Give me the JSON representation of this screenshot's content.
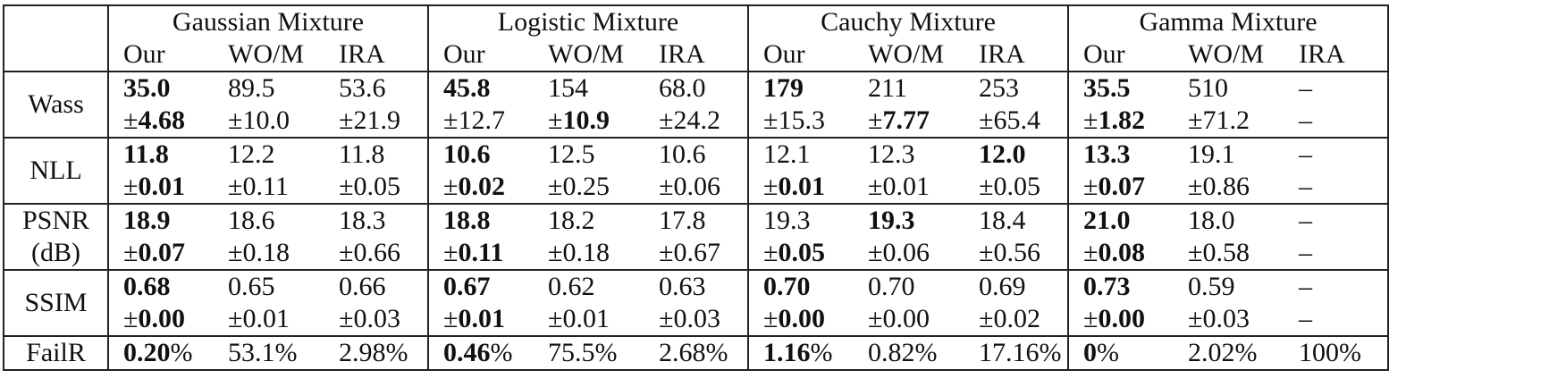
{
  "groups": [
    "Gaussian Mixture",
    "Logistic Mixture",
    "Cauchy Mixture",
    "Gamma Mixture"
  ],
  "methods": [
    "Our",
    "WO/M",
    "IRA"
  ],
  "rows": [
    {
      "label": [
        "Wass"
      ],
      "cells": [
        [
          [
            "35.0",
            "b"
          ],
          [
            "±",
            "",
            "4.68",
            "b"
          ]
        ],
        [
          [
            "89.5",
            ""
          ],
          [
            "±",
            "",
            "10.0",
            ""
          ]
        ],
        [
          [
            "53.6",
            ""
          ],
          [
            "±",
            "",
            "21.9",
            ""
          ]
        ],
        [
          [
            "45.8",
            "b"
          ],
          [
            "±",
            "",
            "12.7",
            ""
          ]
        ],
        [
          [
            "154",
            ""
          ],
          [
            "±",
            "",
            "10.9",
            "b"
          ]
        ],
        [
          [
            "68.0",
            ""
          ],
          [
            "±",
            "",
            "24.2",
            ""
          ]
        ],
        [
          [
            "179",
            "b"
          ],
          [
            "±",
            "",
            "15.3",
            ""
          ]
        ],
        [
          [
            "211",
            ""
          ],
          [
            "±",
            "",
            "7.77",
            "b"
          ]
        ],
        [
          [
            "253",
            ""
          ],
          [
            "±",
            "",
            "65.4",
            ""
          ]
        ],
        [
          [
            "35.5",
            "b"
          ],
          [
            "±",
            "",
            "1.82",
            "b"
          ]
        ],
        [
          [
            "510",
            ""
          ],
          [
            "±",
            "",
            "71.2",
            ""
          ]
        ],
        [
          [
            "–",
            ""
          ],
          [
            "–",
            ""
          ]
        ]
      ]
    },
    {
      "label": [
        "NLL"
      ],
      "cells": [
        [
          [
            "11.8",
            "b"
          ],
          [
            "±",
            "",
            "0.01",
            "b"
          ]
        ],
        [
          [
            "12.2",
            ""
          ],
          [
            "±",
            "",
            "0.11",
            ""
          ]
        ],
        [
          [
            "11.8",
            ""
          ],
          [
            "±",
            "",
            "0.05",
            ""
          ]
        ],
        [
          [
            "10.6",
            "b"
          ],
          [
            "±",
            "",
            "0.02",
            "b"
          ]
        ],
        [
          [
            "12.5",
            ""
          ],
          [
            "±",
            "",
            "0.25",
            ""
          ]
        ],
        [
          [
            "10.6",
            ""
          ],
          [
            "±",
            "",
            "0.06",
            ""
          ]
        ],
        [
          [
            "12.1",
            ""
          ],
          [
            "±",
            "",
            "0.01",
            "b"
          ]
        ],
        [
          [
            "12.3",
            ""
          ],
          [
            "±",
            "",
            "0.01",
            ""
          ]
        ],
        [
          [
            "12.0",
            "b"
          ],
          [
            "±",
            "",
            "0.05",
            ""
          ]
        ],
        [
          [
            "13.3",
            "b"
          ],
          [
            "±",
            "",
            "0.07",
            "b"
          ]
        ],
        [
          [
            "19.1",
            ""
          ],
          [
            "±",
            "",
            "0.86",
            ""
          ]
        ],
        [
          [
            "–",
            ""
          ],
          [
            "–",
            ""
          ]
        ]
      ]
    },
    {
      "label": [
        "PSNR",
        "(dB)"
      ],
      "cells": [
        [
          [
            "18.9",
            "b"
          ],
          [
            "±",
            "",
            "0.07",
            "b"
          ]
        ],
        [
          [
            "18.6",
            ""
          ],
          [
            "±",
            "",
            "0.18",
            ""
          ]
        ],
        [
          [
            "18.3",
            ""
          ],
          [
            "±",
            "",
            "0.66",
            ""
          ]
        ],
        [
          [
            "18.8",
            "b"
          ],
          [
            "±",
            "",
            "0.11",
            "b"
          ]
        ],
        [
          [
            "18.2",
            ""
          ],
          [
            "±",
            "",
            "0.18",
            ""
          ]
        ],
        [
          [
            "17.8",
            ""
          ],
          [
            "±",
            "",
            "0.67",
            ""
          ]
        ],
        [
          [
            "19.3",
            ""
          ],
          [
            "±",
            "",
            "0.05",
            "b"
          ]
        ],
        [
          [
            "19.3",
            "b"
          ],
          [
            "±",
            "",
            "0.06",
            ""
          ]
        ],
        [
          [
            "18.4",
            ""
          ],
          [
            "±",
            "",
            "0.56",
            ""
          ]
        ],
        [
          [
            "21.0",
            "b"
          ],
          [
            "±",
            "",
            "0.08",
            "b"
          ]
        ],
        [
          [
            "18.0",
            ""
          ],
          [
            "±",
            "",
            "0.58",
            ""
          ]
        ],
        [
          [
            "–",
            ""
          ],
          [
            "–",
            ""
          ]
        ]
      ]
    },
    {
      "label": [
        "SSIM"
      ],
      "cells": [
        [
          [
            "0.68",
            "b"
          ],
          [
            "±",
            "",
            "0.00",
            "b"
          ]
        ],
        [
          [
            "0.65",
            ""
          ],
          [
            "±",
            "",
            "0.01",
            ""
          ]
        ],
        [
          [
            "0.66",
            ""
          ],
          [
            "±",
            "",
            "0.03",
            ""
          ]
        ],
        [
          [
            "0.67",
            "b"
          ],
          [
            "±",
            "",
            "0.01",
            "b"
          ]
        ],
        [
          [
            "0.62",
            ""
          ],
          [
            "±",
            "",
            "0.01",
            ""
          ]
        ],
        [
          [
            "0.63",
            ""
          ],
          [
            "±",
            "",
            "0.03",
            ""
          ]
        ],
        [
          [
            "0.70",
            "b"
          ],
          [
            "±",
            "",
            "0.00",
            "b"
          ]
        ],
        [
          [
            "0.70",
            ""
          ],
          [
            "±",
            "",
            "0.00",
            ""
          ]
        ],
        [
          [
            "0.69",
            ""
          ],
          [
            "±",
            "",
            "0.02",
            ""
          ]
        ],
        [
          [
            "0.73",
            "b"
          ],
          [
            "±",
            "",
            "0.00",
            "b"
          ]
        ],
        [
          [
            "0.59",
            ""
          ],
          [
            "±",
            "",
            "0.03",
            ""
          ]
        ],
        [
          [
            "–",
            ""
          ],
          [
            "–",
            ""
          ]
        ]
      ]
    },
    {
      "label": [
        "FailR"
      ],
      "cells": [
        [
          [
            "0.20",
            "b",
            "%",
            ""
          ]
        ],
        [
          [
            "53.1%",
            ""
          ]
        ],
        [
          [
            "2.98%",
            ""
          ]
        ],
        [
          [
            "0.46",
            "b",
            "%",
            ""
          ]
        ],
        [
          [
            "75.5%",
            ""
          ]
        ],
        [
          [
            "2.68%",
            ""
          ]
        ],
        [
          [
            "1.16",
            "b",
            "%",
            ""
          ]
        ],
        [
          [
            "0.82%",
            ""
          ]
        ],
        [
          [
            "17.16%",
            ""
          ]
        ],
        [
          [
            "0",
            "b",
            "%",
            ""
          ]
        ],
        [
          [
            "2.02%",
            ""
          ]
        ],
        [
          [
            "100%",
            ""
          ]
        ]
      ]
    }
  ]
}
